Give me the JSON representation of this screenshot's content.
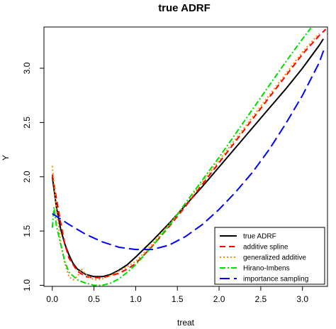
{
  "chart_data": {
    "type": "line",
    "title": "true ADRF",
    "xlabel": "treat",
    "ylabel": "Y",
    "xlim": [
      -0.1,
      3.3
    ],
    "ylim": [
      0.99,
      3.38
    ],
    "x_ticks": [
      "0.0",
      "0.5",
      "1.0",
      "1.5",
      "2.0",
      "2.5",
      "3.0"
    ],
    "y_ticks": [
      "1.0",
      "1.5",
      "2.0",
      "2.5",
      "3.0"
    ],
    "legend_position": "bottom-right",
    "grid": false,
    "series": [
      {
        "name": "true ADRF",
        "color": "#000000",
        "dash": "solid",
        "points": [
          [
            0.0,
            2.0
          ],
          [
            0.05,
            1.72
          ],
          [
            0.1,
            1.52
          ],
          [
            0.15,
            1.38
          ],
          [
            0.2,
            1.28
          ],
          [
            0.25,
            1.2
          ],
          [
            0.3,
            1.15
          ],
          [
            0.4,
            1.1
          ],
          [
            0.5,
            1.08
          ],
          [
            0.6,
            1.08
          ],
          [
            0.7,
            1.1
          ],
          [
            0.8,
            1.14
          ],
          [
            0.9,
            1.19
          ],
          [
            1.0,
            1.26
          ],
          [
            1.2,
            1.41
          ],
          [
            1.4,
            1.57
          ],
          [
            1.6,
            1.74
          ],
          [
            1.8,
            1.91
          ],
          [
            2.0,
            2.09
          ],
          [
            2.2,
            2.27
          ],
          [
            2.4,
            2.45
          ],
          [
            2.6,
            2.63
          ],
          [
            2.8,
            2.81
          ],
          [
            3.0,
            3.0
          ],
          [
            3.2,
            3.21
          ],
          [
            3.25,
            3.27
          ]
        ]
      },
      {
        "name": "additive spline",
        "color": "#ff0000",
        "dash": "dashed",
        "points": [
          [
            0.0,
            2.02
          ],
          [
            0.05,
            1.8
          ],
          [
            0.1,
            1.58
          ],
          [
            0.15,
            1.38
          ],
          [
            0.2,
            1.25
          ],
          [
            0.3,
            1.13
          ],
          [
            0.4,
            1.08
          ],
          [
            0.5,
            1.07
          ],
          [
            0.6,
            1.07
          ],
          [
            0.7,
            1.09
          ],
          [
            0.8,
            1.11
          ],
          [
            0.9,
            1.15
          ],
          [
            1.0,
            1.2
          ],
          [
            1.2,
            1.36
          ],
          [
            1.4,
            1.54
          ],
          [
            1.6,
            1.73
          ],
          [
            1.8,
            1.93
          ],
          [
            2.0,
            2.13
          ],
          [
            2.2,
            2.33
          ],
          [
            2.4,
            2.53
          ],
          [
            2.6,
            2.73
          ],
          [
            2.8,
            2.93
          ],
          [
            3.0,
            3.13
          ],
          [
            3.2,
            3.3
          ],
          [
            3.28,
            3.36
          ]
        ]
      },
      {
        "name": "generalized additive",
        "color": "#ff8c00",
        "dash": "dotted",
        "points": [
          [
            0.0,
            2.1
          ],
          [
            0.05,
            1.7
          ],
          [
            0.1,
            1.4
          ],
          [
            0.15,
            1.2
          ],
          [
            0.2,
            1.08
          ],
          [
            0.25,
            1.05
          ],
          [
            0.3,
            1.08
          ],
          [
            0.35,
            1.15
          ],
          [
            0.4,
            1.1
          ],
          [
            0.5,
            1.05
          ],
          [
            0.6,
            1.06
          ],
          [
            0.7,
            1.09
          ],
          [
            0.8,
            1.13
          ],
          [
            0.9,
            1.17
          ],
          [
            1.0,
            1.22
          ],
          [
            1.2,
            1.38
          ],
          [
            1.4,
            1.56
          ],
          [
            1.6,
            1.75
          ],
          [
            1.8,
            1.95
          ],
          [
            2.0,
            2.15
          ],
          [
            2.2,
            2.35
          ],
          [
            2.4,
            2.55
          ],
          [
            2.6,
            2.75
          ],
          [
            2.8,
            2.95
          ],
          [
            3.0,
            3.15
          ],
          [
            3.2,
            3.32
          ]
        ]
      },
      {
        "name": "Hirano-Imbens",
        "color": "#00dd00",
        "dash": "dashdot",
        "points": [
          [
            0.0,
            1.53
          ],
          [
            0.02,
            1.72
          ],
          [
            0.05,
            1.55
          ],
          [
            0.1,
            1.38
          ],
          [
            0.15,
            1.22
          ],
          [
            0.2,
            1.12
          ],
          [
            0.3,
            1.05
          ],
          [
            0.4,
            1.02
          ],
          [
            0.5,
            1.0
          ],
          [
            0.6,
            1.0
          ],
          [
            0.7,
            1.02
          ],
          [
            0.8,
            1.06
          ],
          [
            0.9,
            1.12
          ],
          [
            1.0,
            1.19
          ],
          [
            1.2,
            1.36
          ],
          [
            1.4,
            1.55
          ],
          [
            1.6,
            1.76
          ],
          [
            1.8,
            1.97
          ],
          [
            2.0,
            2.18
          ],
          [
            2.2,
            2.4
          ],
          [
            2.4,
            2.62
          ],
          [
            2.6,
            2.84
          ],
          [
            2.8,
            3.06
          ],
          [
            3.0,
            3.27
          ],
          [
            3.1,
            3.37
          ]
        ]
      },
      {
        "name": "importance sampling",
        "color": "#0000ff",
        "dash": "longdash",
        "points": [
          [
            0.0,
            1.66
          ],
          [
            0.2,
            1.56
          ],
          [
            0.4,
            1.47
          ],
          [
            0.6,
            1.4
          ],
          [
            0.8,
            1.35
          ],
          [
            1.0,
            1.33
          ],
          [
            1.2,
            1.33
          ],
          [
            1.4,
            1.37
          ],
          [
            1.6,
            1.45
          ],
          [
            1.8,
            1.56
          ],
          [
            2.0,
            1.7
          ],
          [
            2.2,
            1.86
          ],
          [
            2.4,
            2.04
          ],
          [
            2.6,
            2.25
          ],
          [
            2.8,
            2.49
          ],
          [
            3.0,
            2.75
          ],
          [
            3.2,
            3.05
          ],
          [
            3.27,
            3.2
          ]
        ]
      }
    ]
  }
}
